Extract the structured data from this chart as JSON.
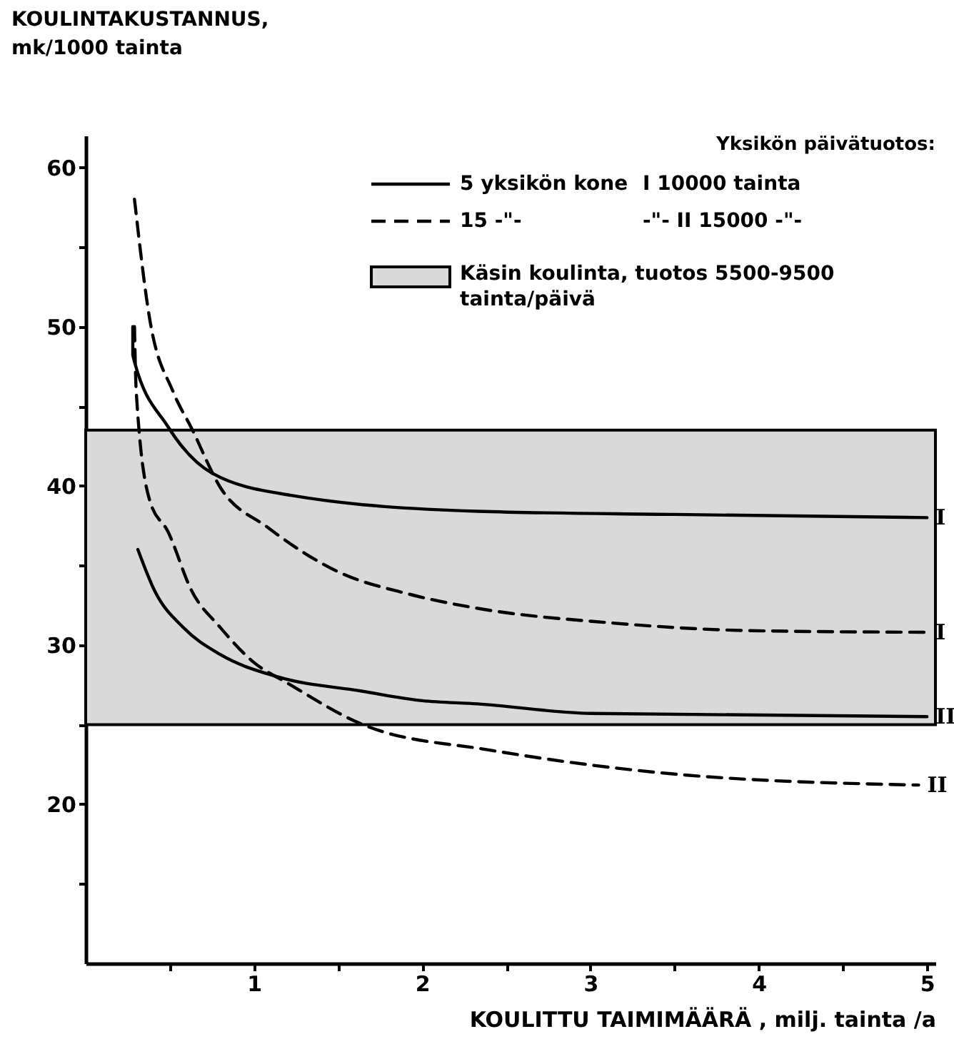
{
  "chart_data": {
    "type": "line",
    "ylabel": "KOULINTAKUSTANNUS,\nmk/1000 tainta",
    "xlabel": "KOULITTU TAIMIMÄÄRÄ , milj. tainta /a",
    "legend_title": "Yksikön päivätuotos:",
    "legend": "top right",
    "xlim": [
      0,
      5.05
    ],
    "ylim": [
      10,
      62
    ],
    "xticks": [
      {
        "value": 0.5,
        "label": null
      },
      1,
      {
        "value": 1.5,
        "label": null
      },
      2,
      {
        "value": 2.5,
        "label": null
      },
      3,
      {
        "value": 3.5,
        "label": null
      },
      4,
      {
        "value": 4.5,
        "label": null
      },
      5
    ],
    "yticks": [
      {
        "value": 15,
        "label": null
      },
      20,
      {
        "value": 25,
        "label": null
      },
      30,
      {
        "value": 35,
        "label": null
      },
      40,
      {
        "value": 45,
        "label": null
      },
      50,
      {
        "value": 55,
        "label": null
      },
      60
    ],
    "grid": false,
    "annotations": [
      "5 yksikön kone",
      "I 10000 tainta",
      "15 -\"-",
      "-\"- II 15000 -\"-"
    ],
    "bands": [
      {
        "axis": "y",
        "from": 25,
        "to": 43.5,
        "label": "Käsin koulinta, tuotos 5500-9500\ntainta/päivä",
        "color": "#d9d9d9"
      }
    ],
    "series": [
      {
        "name": "I",
        "color": "#000000",
        "line_style": "solid",
        "x": [
          0.28,
          0.28,
          0.49,
          0.75,
          1.22,
          2.33,
          3.5,
          5
        ],
        "values": [
          50,
          48.2,
          43.7,
          40.8,
          39.4,
          38.4,
          38.2,
          38
        ]
      },
      {
        "name": "I",
        "color": "#000000",
        "line_style": "dashed",
        "x": [
          0.29,
          0.38,
          0.52,
          0.63,
          0.8,
          1.08,
          1.5,
          1.92,
          2.33,
          3.11,
          3.95,
          5
        ],
        "values": [
          58,
          50.5,
          45.9,
          43.6,
          39.9,
          37.4,
          34.6,
          33.2,
          32.3,
          31.4,
          30.9,
          30.8
        ]
      },
      {
        "name": "II",
        "color": "#000000",
        "line_style": "solid",
        "x": [
          0.31,
          0.41,
          0.58,
          0.8,
          1.14,
          1.64,
          2,
          2.33,
          3,
          5
        ],
        "values": [
          36,
          33.4,
          31.1,
          29.4,
          28,
          27.1,
          26.5,
          26.3,
          25.7,
          25.5
        ]
      },
      {
        "name": "II",
        "color": "#000000",
        "line_style": "dashed",
        "x": [
          0.29,
          0.3,
          0.38,
          0.49,
          0.63,
          0.8,
          1,
          1.2,
          1.67,
          2.4,
          3.49,
          4.95
        ],
        "values": [
          50,
          46,
          39.1,
          37.1,
          33.4,
          31.1,
          28.9,
          27.6,
          24.9,
          23.4,
          21.9,
          21.2
        ]
      }
    ]
  }
}
